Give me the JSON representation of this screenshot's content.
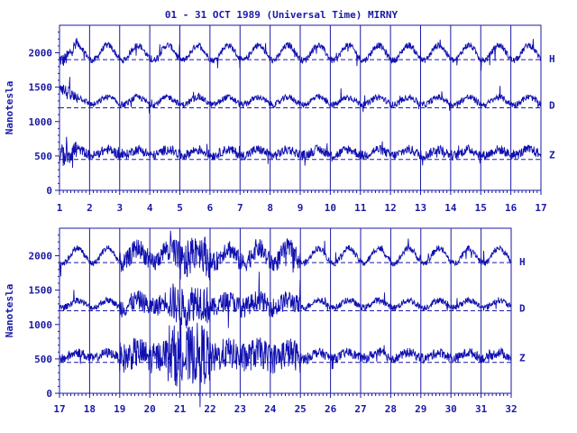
{
  "title": "01 - 31 OCT 1989 (Universal Time) MIRNY",
  "colors": {
    "ink": "#1a1aa6",
    "trace": "#1010b0",
    "background": "#ffffff"
  },
  "chart_data": [
    {
      "type": "line",
      "ylabel": "Nanotesla",
      "ylim": [
        0,
        2400
      ],
      "yticks": [
        0,
        500,
        1000,
        1500,
        2000
      ],
      "xlim": [
        1,
        17
      ],
      "xticks": [
        "1",
        "2",
        "3",
        "4",
        "5",
        "6",
        "7",
        "8",
        "9",
        "10",
        "11",
        "12",
        "13",
        "14",
        "15",
        "16",
        "17"
      ],
      "series": [
        {
          "name": "H",
          "baseline": 1900
        },
        {
          "name": "D",
          "baseline": 1200
        },
        {
          "name": "Z",
          "baseline": 450
        }
      ]
    },
    {
      "type": "line",
      "ylabel": "Nanotesla",
      "ylim": [
        0,
        2400
      ],
      "yticks": [
        0,
        500,
        1000,
        1500,
        2000
      ],
      "xlim": [
        17,
        32
      ],
      "xticks": [
        "17",
        "18",
        "19",
        "20",
        "21",
        "22",
        "23",
        "24",
        "25",
        "26",
        "27",
        "28",
        "29",
        "30",
        "31",
        "32"
      ],
      "series": [
        {
          "name": "H",
          "baseline": 1900
        },
        {
          "name": "D",
          "baseline": 1200
        },
        {
          "name": "Z",
          "baseline": 450
        }
      ]
    }
  ]
}
